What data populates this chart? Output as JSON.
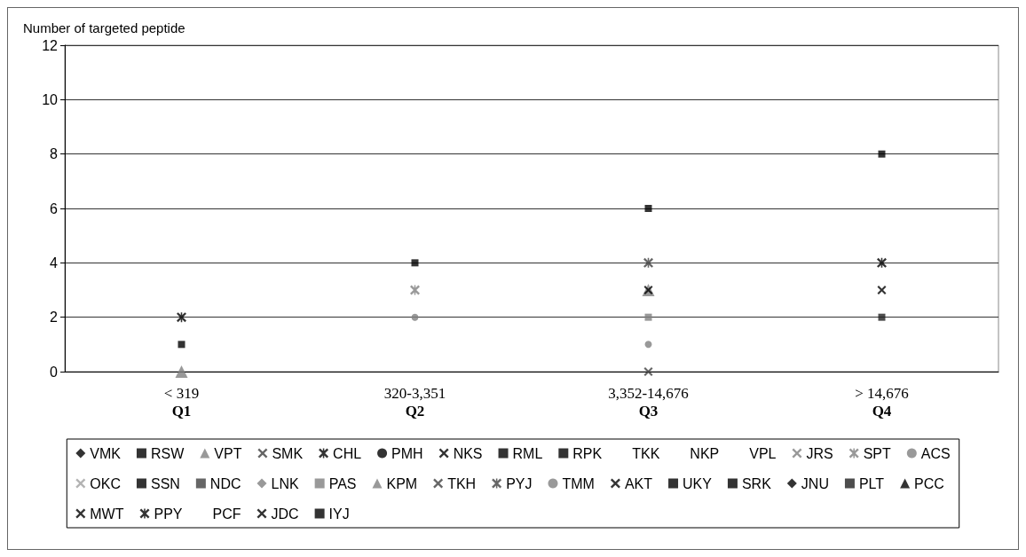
{
  "chart_data": {
    "type": "scatter",
    "ylabel": "Number of targeted peptide",
    "categories": [
      "< 319\nQ1",
      "320-3,351\nQ2",
      "3,352-14,676\nQ3",
      "> 14,676\nQ4"
    ],
    "ylim": [
      0,
      12
    ],
    "yticks": [
      0,
      2,
      4,
      6,
      8,
      10,
      12
    ],
    "grid": "y",
    "legend": "bottom",
    "series": [
      {
        "name": "VMK",
        "color": "#000000",
        "marker": "diamond",
        "values": [
          null,
          null,
          null,
          null
        ]
      },
      {
        "name": "RSW",
        "color": "#000000",
        "marker": "square",
        "values": [
          1,
          null,
          null,
          null
        ]
      },
      {
        "name": "VPT",
        "color": "#808080",
        "marker": "triangle",
        "values": [
          0,
          null,
          null,
          null
        ]
      },
      {
        "name": "SMK",
        "color": "#404040",
        "marker": "cross",
        "values": [
          null,
          null,
          null,
          null
        ]
      },
      {
        "name": "CHL",
        "color": "#000000",
        "marker": "star",
        "values": [
          2,
          null,
          null,
          null
        ]
      },
      {
        "name": "PMH",
        "color": "#000000",
        "marker": "circle",
        "values": [
          null,
          null,
          null,
          null
        ]
      },
      {
        "name": "NKS",
        "color": "#000000",
        "marker": "cross",
        "values": [
          null,
          null,
          null,
          null
        ]
      },
      {
        "name": "RML",
        "color": "#000000",
        "marker": "square",
        "values": [
          null,
          4,
          null,
          null
        ]
      },
      {
        "name": "RPK",
        "color": "#000000",
        "marker": "square",
        "values": [
          null,
          null,
          null,
          8
        ]
      },
      {
        "name": "TKK",
        "color": "#000000",
        "marker": "none",
        "values": [
          null,
          null,
          null,
          null
        ]
      },
      {
        "name": "NKP",
        "color": "#000000",
        "marker": "none",
        "values": [
          null,
          null,
          null,
          null
        ]
      },
      {
        "name": "VPL",
        "color": "#000000",
        "marker": "none",
        "values": [
          null,
          null,
          null,
          null
        ]
      },
      {
        "name": "JRS",
        "color": "#808080",
        "marker": "cross",
        "values": [
          null,
          null,
          null,
          null
        ]
      },
      {
        "name": "SPT",
        "color": "#808080",
        "marker": "star",
        "values": [
          null,
          3,
          null,
          null
        ]
      },
      {
        "name": "ACS",
        "color": "#808080",
        "marker": "circle",
        "values": [
          null,
          2,
          null,
          null
        ]
      },
      {
        "name": "OKC",
        "color": "#a0a0a0",
        "marker": "cross",
        "values": [
          null,
          null,
          null,
          null
        ]
      },
      {
        "name": "SSN",
        "color": "#000000",
        "marker": "square",
        "values": [
          null,
          null,
          6,
          null
        ]
      },
      {
        "name": "NDC",
        "color": "#404040",
        "marker": "square",
        "values": [
          null,
          null,
          null,
          null
        ]
      },
      {
        "name": "LNK",
        "color": "#808080",
        "marker": "diamond",
        "values": [
          null,
          null,
          null,
          null
        ]
      },
      {
        "name": "PAS",
        "color": "#808080",
        "marker": "square",
        "values": [
          null,
          null,
          2,
          null
        ]
      },
      {
        "name": "KPM",
        "color": "#808080",
        "marker": "triangle",
        "values": [
          null,
          null,
          3,
          null
        ]
      },
      {
        "name": "TKH",
        "color": "#404040",
        "marker": "cross",
        "values": [
          null,
          null,
          0,
          null
        ]
      },
      {
        "name": "PYJ",
        "color": "#404040",
        "marker": "star",
        "values": [
          null,
          null,
          4,
          null
        ]
      },
      {
        "name": "TMM",
        "color": "#808080",
        "marker": "circle",
        "values": [
          null,
          null,
          1,
          null
        ]
      },
      {
        "name": "AKT",
        "color": "#000000",
        "marker": "cross",
        "values": [
          null,
          null,
          3,
          null
        ]
      },
      {
        "name": "UKY",
        "color": "#000000",
        "marker": "square",
        "values": [
          null,
          null,
          null,
          null
        ]
      },
      {
        "name": "SRK",
        "color": "#000000",
        "marker": "square",
        "values": [
          null,
          null,
          null,
          null
        ]
      },
      {
        "name": "JNU",
        "color": "#000000",
        "marker": "diamond",
        "values": [
          null,
          null,
          null,
          null
        ]
      },
      {
        "name": "PLT",
        "color": "#202020",
        "marker": "square",
        "values": [
          null,
          null,
          null,
          2
        ]
      },
      {
        "name": "PCC",
        "color": "#000000",
        "marker": "triangle",
        "values": [
          null,
          null,
          null,
          null
        ]
      },
      {
        "name": "MWT",
        "color": "#000000",
        "marker": "cross",
        "values": [
          null,
          null,
          null,
          null
        ]
      },
      {
        "name": "PPY",
        "color": "#000000",
        "marker": "star",
        "values": [
          null,
          null,
          null,
          4
        ]
      },
      {
        "name": "PCF",
        "color": "#000000",
        "marker": "none",
        "values": [
          null,
          null,
          null,
          null
        ]
      },
      {
        "name": "JDC",
        "color": "#000000",
        "marker": "cross",
        "values": [
          null,
          null,
          null,
          3
        ]
      },
      {
        "name": "IYJ",
        "color": "#000000",
        "marker": "square",
        "values": [
          null,
          null,
          null,
          null
        ]
      }
    ]
  }
}
